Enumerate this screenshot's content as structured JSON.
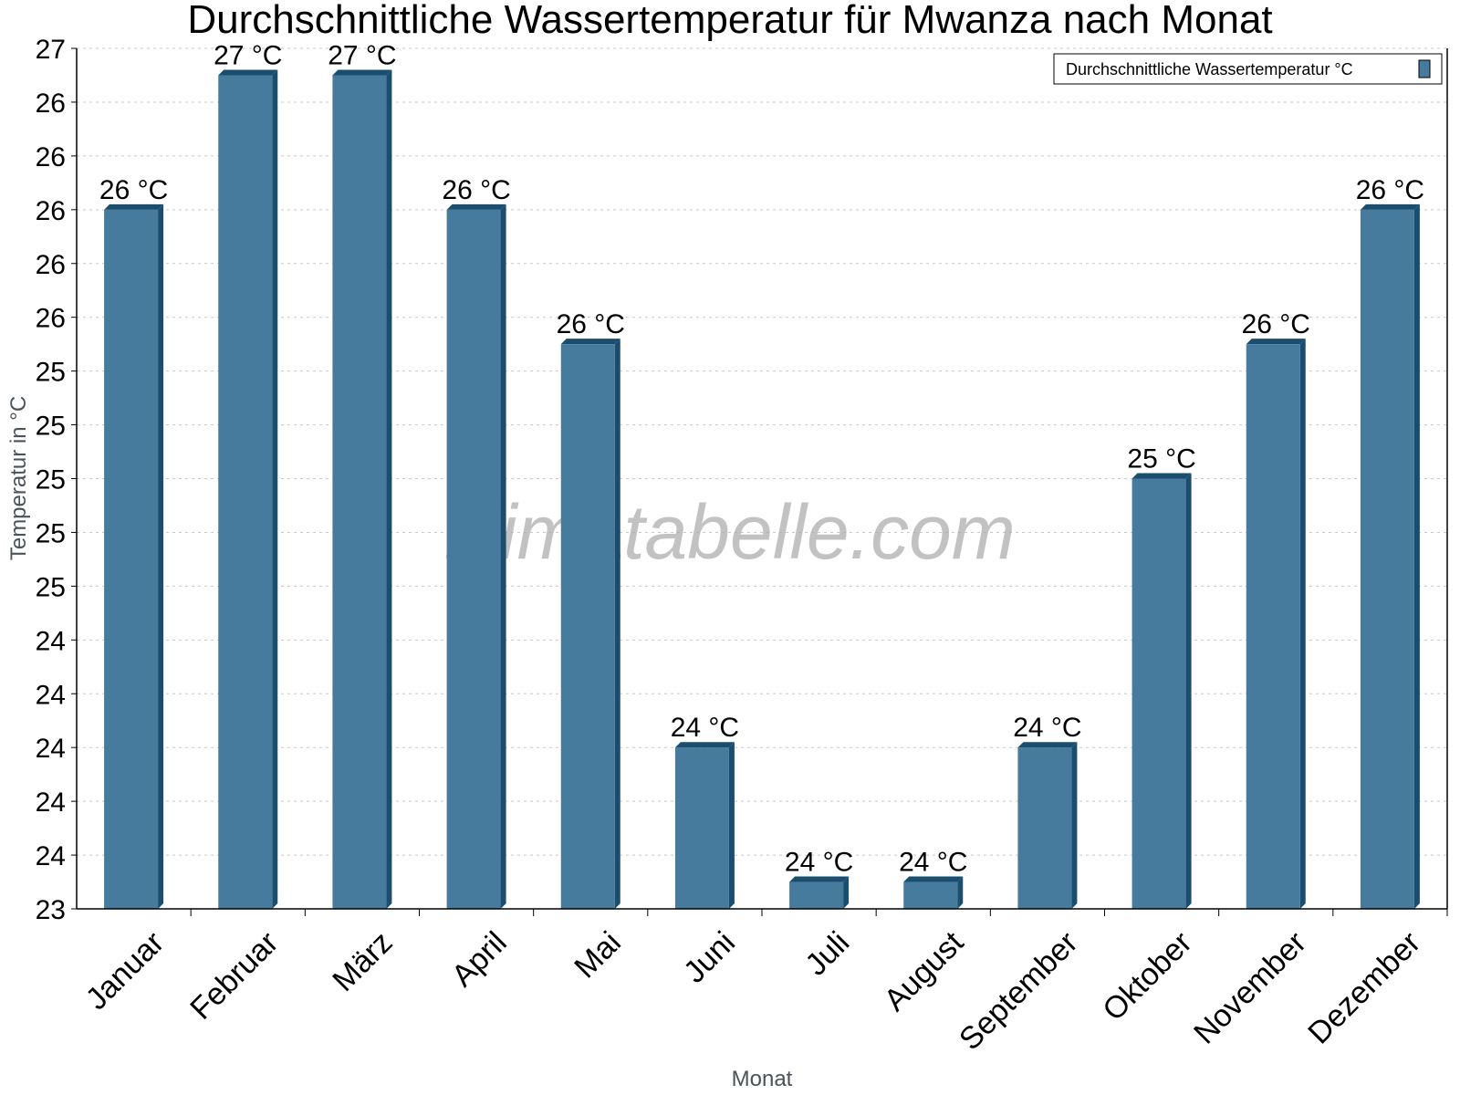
{
  "chart_data": {
    "type": "bar",
    "title": "Durchschnittliche Wassertemperatur für Mwanza nach Monat",
    "xlabel": "Monat",
    "ylabel": "Temperatur in °C",
    "categories": [
      "Januar",
      "Februar",
      "März",
      "April",
      "Mai",
      "Juni",
      "Juli",
      "August",
      "September",
      "Oktober",
      "November",
      "Dezember"
    ],
    "series": [
      {
        "name": "Durchschnittliche Wassertemperatur °C",
        "values": [
          26.0,
          26.5,
          26.5,
          26.0,
          25.5,
          24.0,
          23.5,
          23.5,
          24.0,
          25.0,
          25.5,
          26.0
        ],
        "labels": [
          "26 °C",
          "27 °C",
          "27 °C",
          "26 °C",
          "26 °C",
          "24 °C",
          "24 °C",
          "24 °C",
          "24 °C",
          "25 °C",
          "26 °C",
          "26 °C"
        ],
        "color": "#467b9e",
        "side_color": "#1b4d6e"
      }
    ],
    "ylim": [
      23.4,
      26.6
    ],
    "ytick_step": 0.2,
    "ytick_labels": [
      "23",
      "24",
      "24",
      "24",
      "24",
      "24",
      "25",
      "25",
      "25",
      "25",
      "25",
      "26",
      "26",
      "26",
      "26",
      "26",
      "27"
    ],
    "grid": true,
    "legend_position": "top-right",
    "watermark": "klimatabelle.com"
  }
}
